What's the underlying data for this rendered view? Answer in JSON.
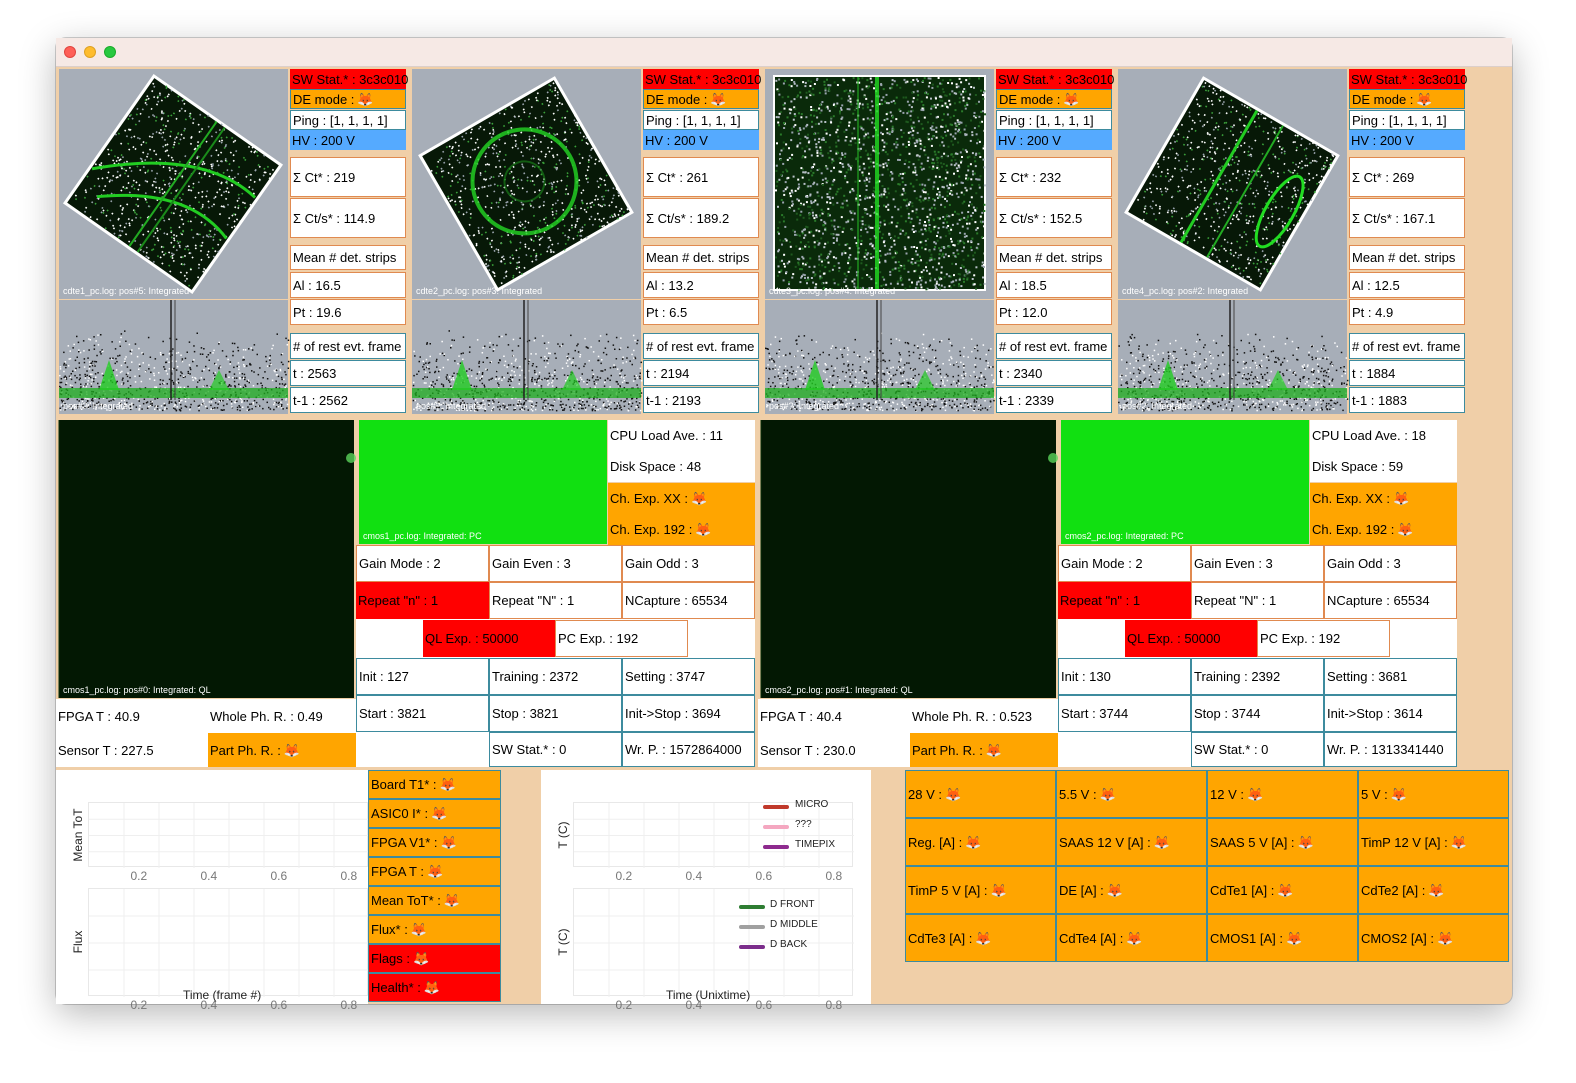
{
  "window": {
    "emoji": "🦊"
  },
  "cdte": [
    {
      "label_top": "cdte1_pc.log: pos#5: Integrated",
      "label_bottom": "pos#?: Integrated",
      "sw_stat": "SW Stat.* : 3c3c010",
      "de_mode": "DE mode :",
      "ping": "Ping : [1, 1, 1, 1]",
      "hv": "HV : 200 V",
      "sum_ct": "Σ Ct* : 219",
      "sum_cts": "Σ Ct/s* : 114.9",
      "mean_strips": "Mean # det. strips",
      "al": "Al : 16.5",
      "pt": "Pt : 19.6",
      "rest_evt": "# of rest evt. frame",
      "t": "t : 2563",
      "t1": "t-1 : 2562"
    },
    {
      "label_top": "cdte2_pc.log: pos#3: Integrated",
      "label_bottom": "pos#?: Integrated",
      "sw_stat": "SW Stat.* : 3c3c010",
      "de_mode": "DE mode :",
      "ping": "Ping : [1, 1, 1, 1]",
      "hv": "HV : 200 V",
      "sum_ct": "Σ Ct* : 261",
      "sum_cts": "Σ Ct/s* : 189.2",
      "mean_strips": "Mean # det. strips",
      "al": "Al : 13.2",
      "pt": "Pt : 6.5",
      "rest_evt": "# of rest evt. frame",
      "t": "t : 2194",
      "t1": "t-1 : 2193"
    },
    {
      "label_top": "cdte3_pc.log: pos#4: Integrated",
      "label_bottom": "pos#?: Integrated",
      "sw_stat": "SW Stat.* : 3c3c010",
      "de_mode": "DE mode :",
      "ping": "Ping : [1, 1, 1, 1]",
      "hv": "HV : 200 V",
      "sum_ct": "Σ Ct* : 232",
      "sum_cts": "Σ Ct/s* : 152.5",
      "mean_strips": "Mean # det. strips",
      "al": "Al : 18.5",
      "pt": "Pt : 12.0",
      "rest_evt": "# of rest evt. frame",
      "t": "t : 2340",
      "t1": "t-1 : 2339"
    },
    {
      "label_top": "cdte4_pc.log: pos#2: Integrated",
      "label_bottom": "pos#?: Integrated",
      "sw_stat": "SW Stat.* : 3c3c010",
      "de_mode": "DE mode :",
      "ping": "Ping : [1, 1, 1, 1]",
      "hv": "HV : 200 V",
      "sum_ct": "Σ Ct* : 269",
      "sum_cts": "Σ Ct/s* : 167.1",
      "mean_strips": "Mean # det. strips",
      "al": "Al : 12.5",
      "pt": "Pt : 4.9",
      "rest_evt": "# of rest evt. frame",
      "t": "t : 1884",
      "t1": "t-1 : 1883"
    }
  ],
  "cmos": [
    {
      "ql_label": "cmos1_pc.log: pos#0: Integrated: QL",
      "pc_label": "cmos1_pc.log: Integrated: PC",
      "cpu_load": "CPU Load Ave. : 11",
      "disk_space": "Disk Space : 48",
      "ch_exp_xx": "Ch. Exp. XX :",
      "ch_exp_192": "Ch. Exp. 192 :",
      "gain_mode": "Gain Mode : 2",
      "gain_even": "Gain Even : 3",
      "gain_odd": "Gain Odd : 3",
      "repeat_n_small": "Repeat \"n\" : 1",
      "repeat_n_big": "Repeat \"N\" : 1",
      "ncapture": "NCapture : 65534",
      "ql_exp": "QL Exp. : 50000",
      "pc_exp": "PC Exp. : 192",
      "init": "Init : 127",
      "training": "Training : 2372",
      "setting": "Setting : 3747",
      "start": "Start : 3821",
      "stop": "Stop : 3821",
      "init_stop": "Init->Stop : 3694",
      "fpga_t": "FPGA T : 40.9",
      "whole_ph": "Whole Ph. R. : 0.49",
      "sensor_t": "Sensor T : 227.5",
      "part_ph": "Part Ph. R. :",
      "sw_stat": "SW Stat.* : 0",
      "wr_p": "Wr. P. : 1572864000"
    },
    {
      "ql_label": "cmos2_pc.log: pos#1: Integrated: QL",
      "pc_label": "cmos2_pc.log: Integrated: PC",
      "cpu_load": "CPU Load Ave. : 18",
      "disk_space": "Disk Space : 59",
      "ch_exp_xx": "Ch. Exp. XX :",
      "ch_exp_192": "Ch. Exp. 192 :",
      "gain_mode": "Gain Mode : 2",
      "gain_even": "Gain Even : 3",
      "gain_odd": "Gain Odd : 3",
      "repeat_n_small": "Repeat \"n\" : 1",
      "repeat_n_big": "Repeat \"N\" : 1",
      "ncapture": "NCapture : 65534",
      "ql_exp": "QL Exp. : 50000",
      "pc_exp": "PC Exp. : 192",
      "init": "Init : 130",
      "training": "Training : 2392",
      "setting": "Setting : 3681",
      "start": "Start : 3744",
      "stop": "Stop : 3744",
      "init_stop": "Init->Stop : 3614",
      "fpga_t": "FPGA T : 40.4",
      "whole_ph": "Whole Ph. R. : 0.523",
      "sensor_t": "Sensor T : 230.0",
      "part_ph": "Part Ph. R. :",
      "sw_stat": "SW Stat.* : 0",
      "wr_p": "Wr. P. : 1313341440"
    }
  ],
  "timepix": {
    "plot1_ylabel": "Mean ToT",
    "plot2_ylabel": "Flux",
    "xlabel": "Time (frame #)",
    "ticks": [
      "0.2",
      "0.4",
      "0.6",
      "0.8"
    ],
    "status": [
      "Board T1* :",
      "ASIC0 I* :",
      "FPGA V1* :",
      "FPGA T :",
      "Mean ToT* :",
      "Flux* :",
      "Flags :",
      "Health* :"
    ]
  },
  "temps": {
    "ylabel": "T (C)",
    "xlabel": "Time (Unixtime)",
    "ticks": [
      "0.2",
      "0.4",
      "0.6",
      "0.8"
    ],
    "legend1": [
      "MICRO",
      "???",
      "TIMEPIX"
    ],
    "legend2": [
      "D FRONT",
      "D MIDDLE",
      "D BACK"
    ],
    "colors": {
      "micro": "#c0392b",
      "qqq": "#f4a7c0",
      "timepix": "#8e2a8e",
      "front": "#2e7d32",
      "middle": "#a0a0a0",
      "back": "#7b2d8b"
    }
  },
  "power": [
    [
      "28 V :",
      "5.5 V :",
      "12 V :",
      "5 V :"
    ],
    [
      "Reg. [A] :",
      "SAAS 12 V [A] :",
      "SAAS 5 V [A] :",
      "TimP 12 V [A] :"
    ],
    [
      "TimP 5 V [A] :",
      "DE [A] :",
      "CdTe1 [A] :",
      "CdTe2 [A] :"
    ],
    [
      "CdTe3 [A] :",
      "CdTe4 [A] :",
      "CMOS1 [A] :",
      "CMOS2 [A] :"
    ]
  ]
}
